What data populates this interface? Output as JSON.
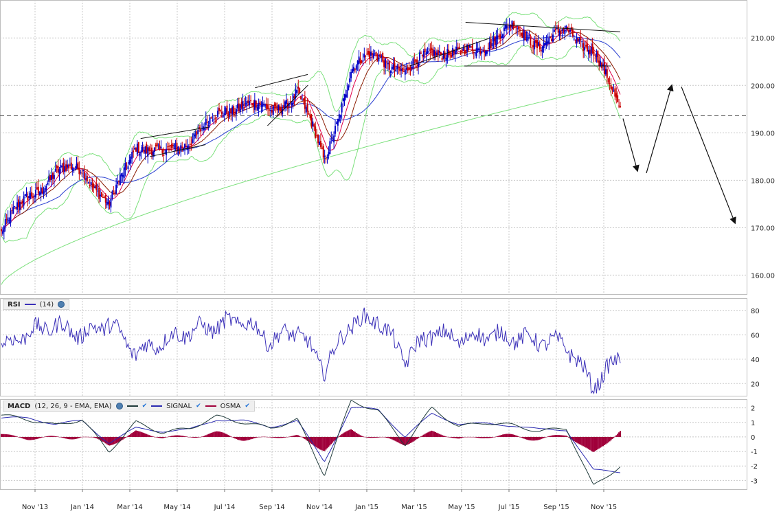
{
  "chart_data": [
    {
      "type": "candlestick",
      "panel": "price",
      "title": "",
      "ylim": [
        156,
        218
      ],
      "yticks": [
        "160.00",
        "170.00",
        "180.00",
        "190.00",
        "200.00",
        "210.00"
      ],
      "xticks": [
        "Nov '13",
        "Jan '14",
        "Mar '14",
        "May '14",
        "Jul '14",
        "Sep '14",
        "Nov '14",
        "Jan '15",
        "Mar '15",
        "May '15",
        "Jul '15",
        "Sep '15",
        "Nov '15"
      ],
      "reference_line": 193.6,
      "close_series": [
        [
          "Oct '13",
          169
        ],
        [
          "Nov '13",
          177
        ],
        [
          "Dec '13",
          181
        ],
        [
          "Jan '14",
          183
        ],
        [
          "Feb '14",
          174
        ],
        [
          "Mar '14",
          188
        ],
        [
          "Apr '14",
          185
        ],
        [
          "May '14",
          189
        ],
        [
          "Jun '14",
          193
        ],
        [
          "Jul '14",
          197
        ],
        [
          "Aug '14",
          194
        ],
        [
          "Sep '14",
          199
        ],
        [
          "Oct '14",
          184
        ],
        [
          "Nov '14",
          203
        ],
        [
          "Dec '14",
          207
        ],
        [
          "Jan '15",
          202
        ],
        [
          "Feb '15",
          208
        ],
        [
          "Mar '15",
          206
        ],
        [
          "Apr '15",
          209
        ],
        [
          "May '15",
          212
        ],
        [
          "Jun '15",
          209
        ],
        [
          "Jul '15",
          211
        ],
        [
          "Aug '15",
          208
        ],
        [
          "Sep '15",
          194
        ]
      ],
      "projection": [
        193,
        182,
        200,
        171
      ],
      "overlays": [
        "Bollinger Bands",
        "moving averages",
        "200-day MA",
        "trendlines"
      ],
      "colors": {
        "up": "#0000c8",
        "down": "#c80000",
        "band": "#7be07b",
        "ma_fast": "#e0004a",
        "ma_slow": "#2a3fd0"
      }
    },
    {
      "type": "line",
      "panel": "rsi",
      "label": "RSI",
      "params": "(14)",
      "ylim": [
        10,
        90
      ],
      "yticks": [
        "20",
        "40",
        "60",
        "80"
      ],
      "series": [
        {
          "values": [
            50,
            62,
            68,
            60,
            70,
            45,
            55,
            63,
            67,
            72,
            55,
            64,
            32,
            70,
            73,
            40,
            62,
            56,
            60,
            58,
            55,
            52,
            18,
            42
          ]
        }
      ],
      "color": "#3a2fb8"
    },
    {
      "type": "bar",
      "panel": "macd",
      "label": "MACD",
      "params": "(12, 26, 9 - EMA, EMA)",
      "legend": [
        "SIGNAL",
        "OSMA"
      ],
      "ylim": [
        -3.6,
        2.6
      ],
      "yticks": [
        "2",
        "1",
        "0",
        "-1",
        "-2",
        "-3"
      ],
      "macd": [
        1.5,
        1.2,
        0.8,
        1.2,
        -1.0,
        1.0,
        0.3,
        0.6,
        1.4,
        1.0,
        0.6,
        1.2,
        -2.6,
        2.5,
        1.8,
        -0.5,
        2.0,
        0.7,
        1.0,
        0.8,
        0.4,
        0.6,
        -3.4,
        -2.0
      ],
      "signal": [
        1.3,
        1.3,
        0.9,
        1.1,
        -0.4,
        0.6,
        0.4,
        0.5,
        1.2,
        1.1,
        0.7,
        1.1,
        -1.7,
        2.0,
        1.9,
        0.0,
        1.6,
        0.9,
        0.9,
        0.8,
        0.5,
        0.5,
        -2.3,
        -2.4
      ],
      "colors": {
        "macd": "#1f3a3a",
        "signal": "#2a2ab0",
        "osma": "#a0003a"
      }
    }
  ]
}
